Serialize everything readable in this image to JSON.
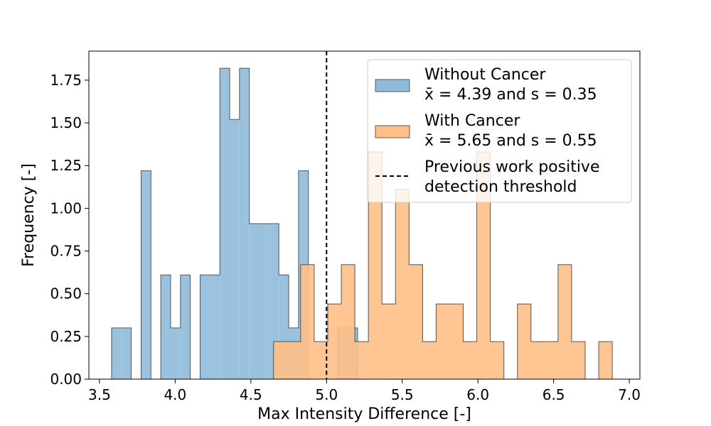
{
  "chart_data": {
    "type": "histogram",
    "xlabel": "Max Intensity Difference [-]",
    "ylabel": "Frequency [-]",
    "xlim": [
      3.43,
      7.07
    ],
    "ylim": [
      0,
      1.92
    ],
    "xticks": [
      "3.5",
      "4.0",
      "4.5",
      "5.0",
      "5.5",
      "6.0",
      "6.5",
      "7.0"
    ],
    "xtick_values": [
      3.5,
      4.0,
      4.5,
      5.0,
      5.5,
      6.0,
      6.5,
      7.0
    ],
    "yticks": [
      "0.00",
      "0.25",
      "0.50",
      "0.75",
      "1.00",
      "1.25",
      "1.50",
      "1.75"
    ],
    "ytick_values": [
      0,
      0.25,
      0.5,
      0.75,
      1.0,
      1.25,
      1.5,
      1.75
    ],
    "threshold": {
      "x": 5.0,
      "label": [
        "Previous work positive",
        "detection threshold"
      ],
      "style": "dashed",
      "color": "#000000"
    },
    "legend_position": "top-right",
    "series": [
      {
        "name": "Without Cancer",
        "stats_label": "x̄ = 4.39 and s = 0.35",
        "color": "#1f77b4",
        "fill": "#8fbbda",
        "edges": [
          3.58,
          3.645,
          3.71,
          3.775,
          3.84,
          3.905,
          3.97,
          4.035,
          4.1,
          4.165,
          4.23,
          4.295,
          4.36,
          4.425,
          4.49,
          4.555,
          4.62,
          4.685,
          4.75,
          4.815,
          4.88,
          4.945,
          5.01,
          5.075,
          5.14,
          5.205
        ],
        "values": [
          0.3,
          0.3,
          0,
          1.22,
          0,
          0.61,
          0.3,
          0.61,
          0,
          0.61,
          0.61,
          1.82,
          1.52,
          1.82,
          0.91,
          0.91,
          0.91,
          0.61,
          0.3,
          1.22,
          0,
          0,
          0,
          0.3,
          0.3
        ]
      },
      {
        "name": "With Cancer",
        "stats_label": "x̄ = 5.65 and s = 0.55",
        "color": "#ff7f0e",
        "fill": "#ffbf86",
        "edges": [
          4.65,
          4.7395,
          4.829,
          4.9185,
          5.008,
          5.0975,
          5.187,
          5.2765,
          5.366,
          5.4555,
          5.545,
          5.6345,
          5.724,
          5.8135,
          5.903,
          5.9925,
          6.082,
          6.1715,
          6.261,
          6.3505,
          6.44,
          6.5295,
          6.619,
          6.7085,
          6.798,
          6.8875
        ],
        "values": [
          0.22,
          0.22,
          0.67,
          0.22,
          0.44,
          0.67,
          0.22,
          1.33,
          0.44,
          1.11,
          0.67,
          0.22,
          0.44,
          0.44,
          0.22,
          1.33,
          0.22,
          0,
          0.44,
          0.22,
          0.22,
          0.67,
          0.22,
          0,
          0.22
        ]
      }
    ]
  }
}
